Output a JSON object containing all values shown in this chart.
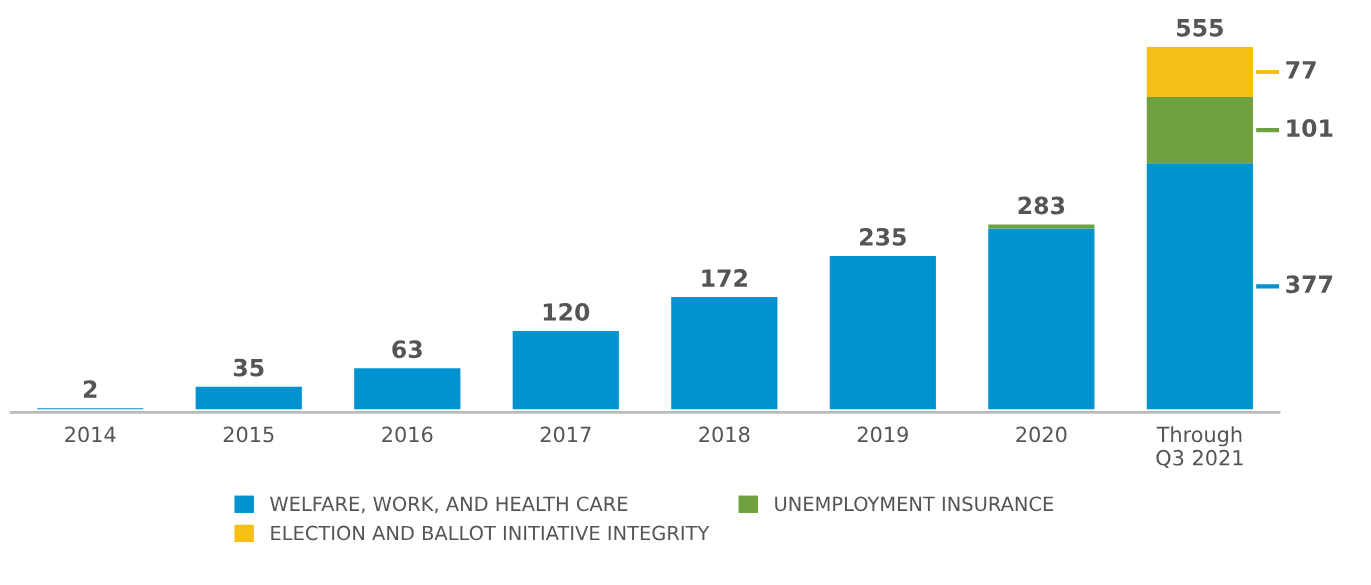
{
  "chart_data": {
    "type": "bar",
    "stacked": true,
    "categories": [
      "2014",
      "2015",
      "2016",
      "2017",
      "2018",
      "2019",
      "2020",
      "Through\nQ3 2021"
    ],
    "series": [
      {
        "name": "WELFARE, WORK, AND HEALTH CARE",
        "color": "#0093d0",
        "values": [
          2,
          35,
          63,
          120,
          172,
          235,
          277,
          377
        ],
        "value_labels": [
          "2",
          "35",
          "63",
          "120",
          "172",
          "235",
          null,
          "377"
        ]
      },
      {
        "name": "UNEMPLOYMENT INSURANCE",
        "color": "#70a03f",
        "values": [
          null,
          null,
          null,
          null,
          null,
          null,
          6,
          101
        ],
        "value_labels": [
          null,
          null,
          null,
          null,
          null,
          null,
          null,
          "101"
        ]
      },
      {
        "name": "ELECTION AND BALLOT INITIATIVE INTEGRITY",
        "color": "#f5bf17",
        "values": [
          null,
          null,
          null,
          null,
          null,
          null,
          null,
          77
        ],
        "value_labels": [
          null,
          null,
          null,
          null,
          null,
          null,
          null,
          "77"
        ]
      }
    ],
    "totals": [
      null,
      null,
      null,
      null,
      null,
      null,
      "283",
      "555"
    ],
    "legend": "bottom",
    "grid": false
  }
}
